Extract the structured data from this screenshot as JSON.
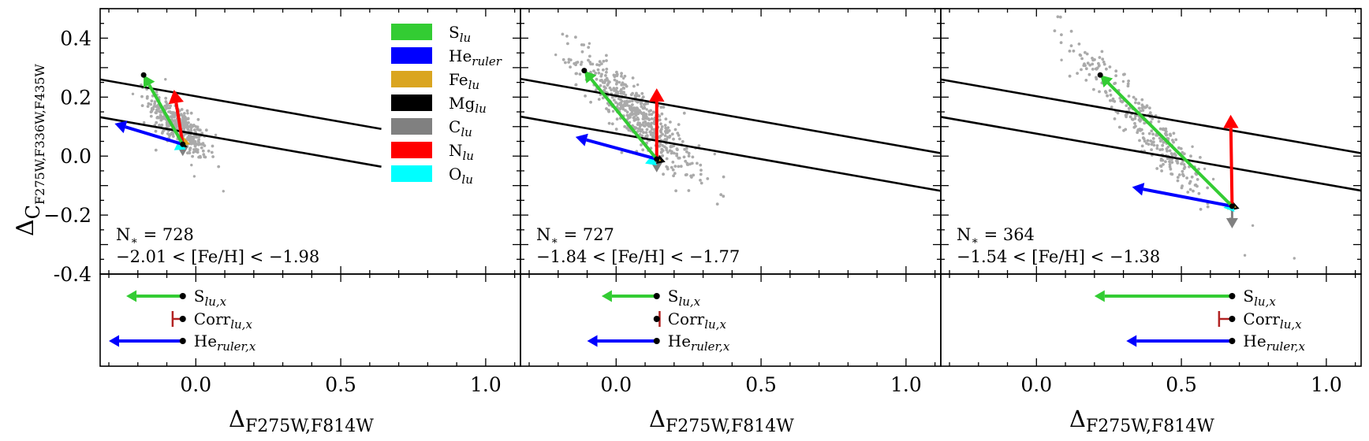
{
  "figure": {
    "ylabel_main": "Δ",
    "ylabel_sub": "C",
    "ylabel_subsub": "F275W,F336W,F435W",
    "xlabel_main": "Δ",
    "xlabel_sub": "F275W,F814W",
    "y_tick_labels": [
      "-0.4",
      "−0.2",
      "0.0",
      "0.2",
      "0.4"
    ],
    "x_tick_labels": [
      "0.0",
      "0.5",
      "1.0"
    ],
    "colors": {
      "S": "#33cc33",
      "He": "#0000ff",
      "Fe": "#daa520",
      "Mg": "#000000",
      "C": "#808080",
      "N": "#ff0000",
      "O": "#00ffff",
      "Corr": "#b22222",
      "points": "#aaaaaa"
    }
  },
  "legend": [
    {
      "key": "S",
      "base": "S",
      "sub": "lu"
    },
    {
      "key": "He",
      "base": "He",
      "sub": "ruler"
    },
    {
      "key": "Fe",
      "base": "Fe",
      "sub": "lu"
    },
    {
      "key": "Mg",
      "base": "Mg",
      "sub": "lu"
    },
    {
      "key": "C",
      "base": "C",
      "sub": "lu"
    },
    {
      "key": "N",
      "base": "N",
      "sub": "lu"
    },
    {
      "key": "O",
      "base": "O",
      "sub": "lu"
    }
  ],
  "bottom_labels": [
    {
      "base": "S",
      "sub": "lu,x"
    },
    {
      "base": "Corr",
      "sub": "lu,x"
    },
    {
      "base": "He",
      "sub": "ruler,x"
    }
  ],
  "chart_data": [
    {
      "type": "scatter",
      "panel": "left",
      "n_text": "N",
      "n_star": "∗",
      "n_value": " = 728",
      "feh_range": "−2.01 < [Fe/H] < −1.98",
      "xlim": [
        -0.33,
        1.12
      ],
      "ylim": [
        -0.4,
        0.5
      ],
      "cloud": {
        "cx": -0.06,
        "cy": 0.1,
        "sx": 0.05,
        "sy": 0.075,
        "slope": -0.8,
        "count": 380,
        "range_x": [
          -0.22,
          0.12
        ]
      },
      "ref_lines": [
        {
          "x": [
            -0.33,
            0.64
          ],
          "y": [
            0.26,
            0.092
          ]
        },
        {
          "x": [
            -0.33,
            0.64
          ],
          "y": [
            0.132,
            -0.036
          ]
        }
      ],
      "origin": [
        -0.045,
        0.04
      ],
      "vectors": {
        "S": [
          -0.18,
          0.275
        ],
        "He": [
          -0.28,
          0.11
        ],
        "N": [
          -0.075,
          0.225
        ],
        "Fe": [
          -0.052,
          0.034
        ],
        "Mg": [
          -0.03,
          0.03
        ],
        "C": [
          -0.045,
          0.0
        ],
        "O": [
          -0.075,
          0.02
        ]
      },
      "bottom": {
        "dot_x": -0.045,
        "S_x": -0.24,
        "Corr_x": -0.08,
        "He_x": -0.3
      }
    },
    {
      "type": "scatter",
      "panel": "middle",
      "n_text": "N",
      "n_star": "∗",
      "n_value": " = 727",
      "feh_range": "−1.84 < [Fe/H] < −1.77",
      "xlim": [
        -0.33,
        1.12
      ],
      "ylim": [
        -0.4,
        0.5
      ],
      "cloud": {
        "cx": 0.07,
        "cy": 0.14,
        "sx": 0.1,
        "sy": 0.1,
        "slope": -0.9,
        "count": 520,
        "range_x": [
          -0.22,
          0.4
        ]
      },
      "ref_lines": [
        {
          "x": [
            -0.33,
            1.12
          ],
          "y": [
            0.262,
            0.01
          ]
        },
        {
          "x": [
            -0.33,
            1.12
          ],
          "y": [
            0.134,
            -0.118
          ]
        }
      ],
      "origin": [
        0.14,
        -0.01
      ],
      "vectors": {
        "S": [
          -0.11,
          0.29
        ],
        "He": [
          -0.14,
          0.065
        ],
        "N": [
          0.14,
          0.23
        ],
        "Fe": [
          0.155,
          -0.016
        ],
        "Mg": [
          0.17,
          -0.02
        ],
        "C": [
          0.14,
          -0.055
        ],
        "O": [
          0.1,
          -0.025
        ]
      },
      "bottom": {
        "dot_x": 0.14,
        "S_x": -0.05,
        "Corr_x": 0.15,
        "He_x": -0.1
      }
    },
    {
      "type": "scatter",
      "panel": "right",
      "n_text": "N",
      "n_star": "∗",
      "n_value": " = 364",
      "feh_range": "−1.54 < [Fe/H] < −1.38",
      "xlim": [
        -0.33,
        1.12
      ],
      "ylim": [
        -0.4,
        0.5
      ],
      "cloud": {
        "cx": 0.38,
        "cy": 0.1,
        "sx": 0.13,
        "sy": 0.1,
        "slope": -1.05,
        "count": 300,
        "range_x": [
          0.05,
          1.0
        ]
      },
      "ref_lines": [
        {
          "x": [
            -0.33,
            1.12
          ],
          "y": [
            0.26,
            0.01
          ]
        },
        {
          "x": [
            -0.33,
            1.12
          ],
          "y": [
            0.133,
            -0.117
          ]
        }
      ],
      "origin": [
        0.675,
        -0.17
      ],
      "vectors": {
        "S": [
          0.22,
          0.275
        ],
        "He": [
          0.33,
          -0.105
        ],
        "N": [
          0.67,
          0.14
        ],
        "Fe": [
          0.69,
          -0.174
        ],
        "Mg": [
          0.7,
          -0.178
        ],
        "C": [
          0.675,
          -0.245
        ],
        "O": [
          0.645,
          -0.175
        ]
      },
      "bottom": {
        "dot_x": 0.675,
        "S_x": 0.2,
        "Corr_x": 0.63,
        "He_x": 0.31
      }
    }
  ]
}
